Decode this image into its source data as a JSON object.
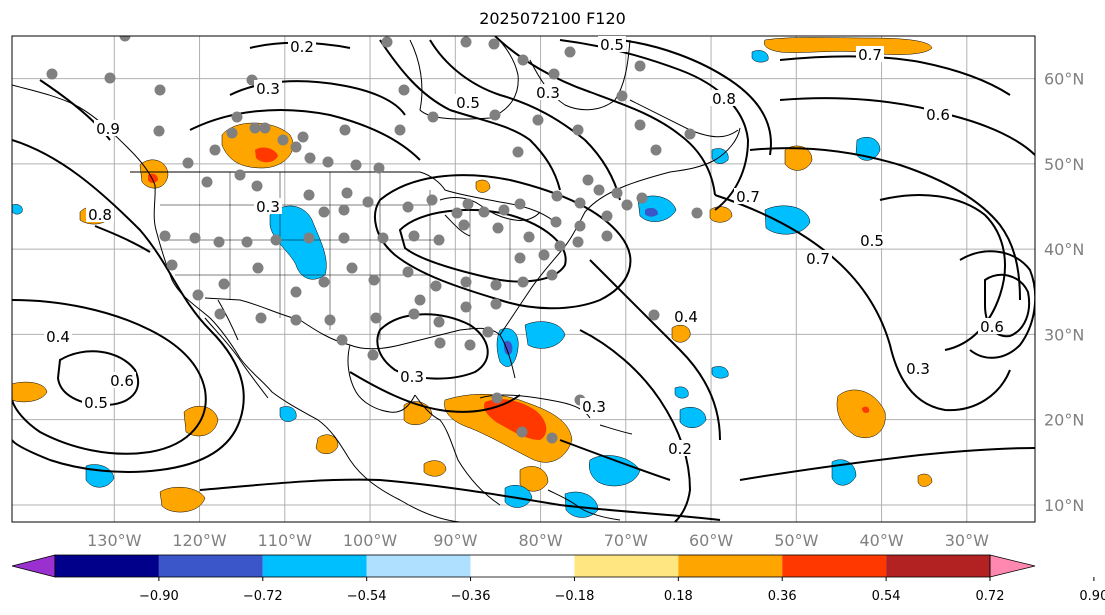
{
  "title": "2025072100 F120",
  "map": {
    "projection": "plate-carree",
    "lon_range": [
      -142,
      -22
    ],
    "lat_range": [
      8,
      65
    ],
    "lat_labels": [
      "10°N",
      "20°N",
      "30°N",
      "40°N",
      "50°N",
      "60°N"
    ],
    "lon_labels": [
      "130°W",
      "120°W",
      "110°W",
      "100°W",
      "90°W",
      "80°W",
      "70°W",
      "60°W",
      "50°W",
      "40°W",
      "30°W"
    ],
    "gridlines": true,
    "station_marker_color": "#808080"
  },
  "contours": {
    "color": "#000000",
    "labels": [
      "0.2",
      "0.3",
      "0.5",
      "0.8",
      "0.6",
      "0.7",
      "0.7",
      "0.5",
      "0.4",
      "0.3",
      "0.6",
      "0.9",
      "0.5",
      "0.4",
      "0.7",
      "0.8",
      "0.3",
      "0.3",
      "0.3",
      "0.2",
      "0.6",
      "0.3",
      "0.5"
    ]
  },
  "colorbar": {
    "ticks": [
      "−0.90",
      "−0.72",
      "−0.54",
      "−0.36",
      "−0.18",
      "0.18",
      "0.36",
      "0.54",
      "0.72",
      "0.90"
    ],
    "colors": [
      "#9b30d0",
      "#00008b",
      "#3a56c8",
      "#00bfff",
      "#b0e0ff",
      "#ffffff",
      "#ffe680",
      "#ffa500",
      "#ff3800",
      "#b22222",
      "#ff88b0"
    ]
  },
  "shading_colors": {
    "orange": "#ffa500",
    "red": "#ff3800",
    "lightblue": "#00bfff",
    "blue": "#3a56c8"
  }
}
